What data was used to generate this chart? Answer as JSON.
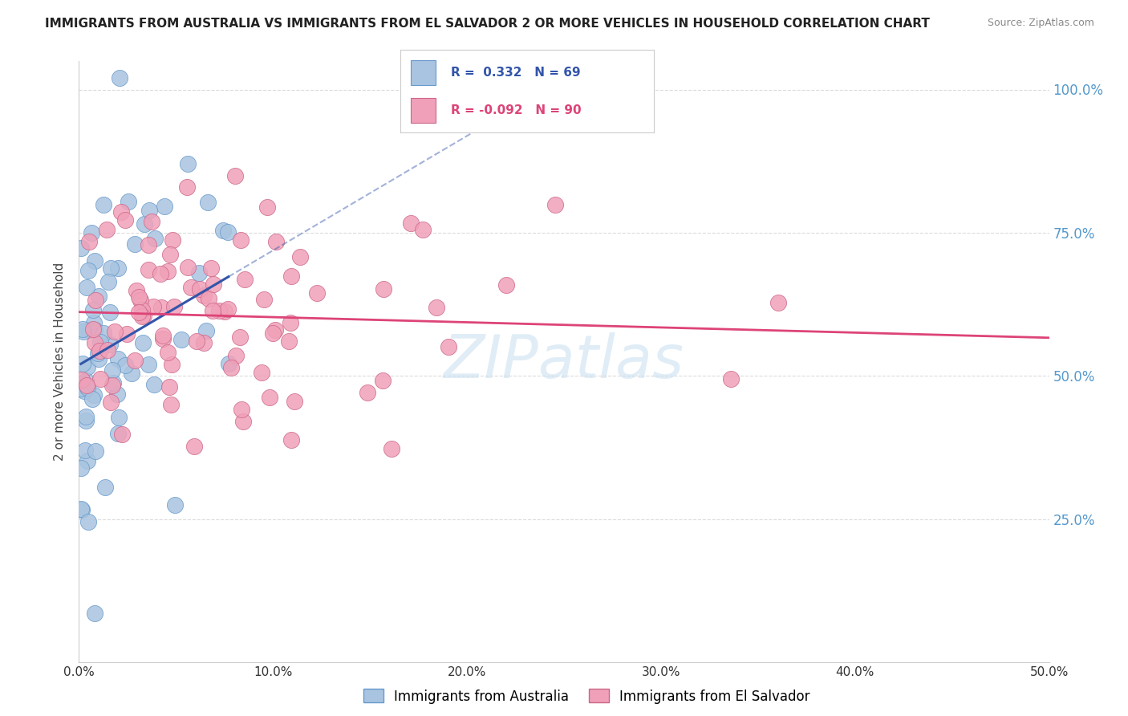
{
  "title": "IMMIGRANTS FROM AUSTRALIA VS IMMIGRANTS FROM EL SALVADOR 2 OR MORE VEHICLES IN HOUSEHOLD CORRELATION CHART",
  "source": "Source: ZipAtlas.com",
  "ylabel": "2 or more Vehicles in Household",
  "ylabel_ticks": [
    "100.0%",
    "75.0%",
    "50.0%",
    "25.0%"
  ],
  "xlim": [
    0.0,
    0.5
  ],
  "ylim": [
    0.0,
    1.05
  ],
  "ytick_positions": [
    1.0,
    0.75,
    0.5,
    0.25
  ],
  "xtick_positions": [
    0.0,
    0.1,
    0.2,
    0.3,
    0.4,
    0.5
  ],
  "xtick_labels": [
    "0.0%",
    "10.0%",
    "20.0%",
    "30.0%",
    "40.0%",
    "50.0%"
  ],
  "grid_color": "#cccccc",
  "background_color": "#ffffff",
  "australia_color": "#a8c4e0",
  "australia_edge_color": "#6699cc",
  "elsalvador_color": "#f0a0b8",
  "elsalvador_edge_color": "#cc6688",
  "australia_line_color": "#3355aa",
  "elsalvador_line_color": "#dd4477",
  "R_australia": 0.332,
  "N_australia": 69,
  "R_elsalvador": -0.092,
  "N_elsalvador": 90,
  "legend_label_australia": "Immigrants from Australia",
  "legend_label_elsalvador": "Immigrants from El Salvador",
  "watermark": "ZIPatlas",
  "right_tick_color": "#5599cc"
}
